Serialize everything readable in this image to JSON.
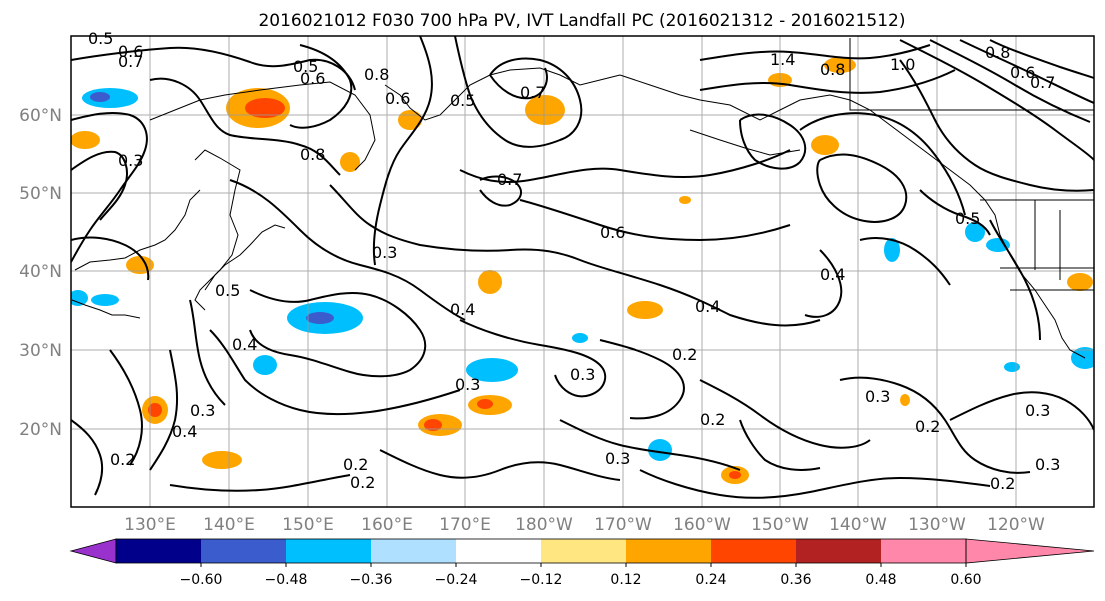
{
  "title": "2016021012 F030 700 hPa PV, IVT Landfall PC (2016021312 - 2016021512)",
  "map": {
    "lat_labels": [
      "60°N",
      "50°N",
      "40°N",
      "30°N",
      "20°N"
    ],
    "lon_labels": [
      "130°E",
      "140°E",
      "150°E",
      "160°E",
      "170°E",
      "180°W",
      "170°W",
      "160°W",
      "150°W",
      "140°W",
      "130°W",
      "120°W"
    ],
    "contour_labels": [
      {
        "text": "0.5",
        "id": "a"
      },
      {
        "text": "0.6",
        "id": "b"
      },
      {
        "text": "0.7",
        "id": "c"
      },
      {
        "text": "0.5",
        "id": "d"
      },
      {
        "text": "0.6",
        "id": "e"
      },
      {
        "text": "0.8",
        "id": "f"
      },
      {
        "text": "0.6",
        "id": "g"
      },
      {
        "text": "0.5",
        "id": "h"
      },
      {
        "text": "1.4",
        "id": "i"
      },
      {
        "text": "0.8",
        "id": "j"
      },
      {
        "text": "1.0",
        "id": "k"
      },
      {
        "text": "0.8",
        "id": "l"
      },
      {
        "text": "0.7",
        "id": "m"
      },
      {
        "text": "0.6",
        "id": "n"
      },
      {
        "text": "0.7",
        "id": "o"
      },
      {
        "text": "0.8",
        "id": "p"
      },
      {
        "text": "0.7",
        "id": "q"
      },
      {
        "text": "0.6",
        "id": "r"
      },
      {
        "text": "0.5",
        "id": "s"
      },
      {
        "text": "0.4",
        "id": "t"
      },
      {
        "text": "0.3",
        "id": "u"
      },
      {
        "text": "0.4",
        "id": "v"
      },
      {
        "text": "0.4",
        "id": "w"
      },
      {
        "text": "0.2",
        "id": "x"
      },
      {
        "text": "0.3",
        "id": "y"
      },
      {
        "text": "0.3",
        "id": "z"
      },
      {
        "text": "0.3",
        "id": "aa"
      },
      {
        "text": "0.2",
        "id": "ab"
      },
      {
        "text": "0.3",
        "id": "ac"
      },
      {
        "text": "0.2",
        "id": "ad"
      },
      {
        "text": "0.3",
        "id": "ae"
      },
      {
        "text": "0.2",
        "id": "af"
      },
      {
        "text": "0.3",
        "id": "ag"
      },
      {
        "text": "0.2",
        "id": "ah"
      },
      {
        "text": "0.3",
        "id": "ai"
      },
      {
        "text": "0.4",
        "id": "aj"
      },
      {
        "text": "0.2",
        "id": "ak"
      },
      {
        "text": "0.4",
        "id": "al"
      },
      {
        "text": "0.5",
        "id": "am"
      },
      {
        "text": "0.2",
        "id": "an"
      },
      {
        "text": "0.3",
        "id": "ao"
      }
    ]
  },
  "colorbar": {
    "tick_labels": [
      "−0.60",
      "−0.48",
      "−0.36",
      "−0.24",
      "−0.12",
      "0.12",
      "0.24",
      "0.36",
      "0.48",
      "0.60"
    ],
    "colors": [
      "#9932cc",
      "#00008b",
      "#3a5ccc",
      "#00bfff",
      "#b0e0ff",
      "#ffffff",
      "#ffe680",
      "#ffa500",
      "#ff4500",
      "#b22222",
      "#ff88aa"
    ]
  }
}
